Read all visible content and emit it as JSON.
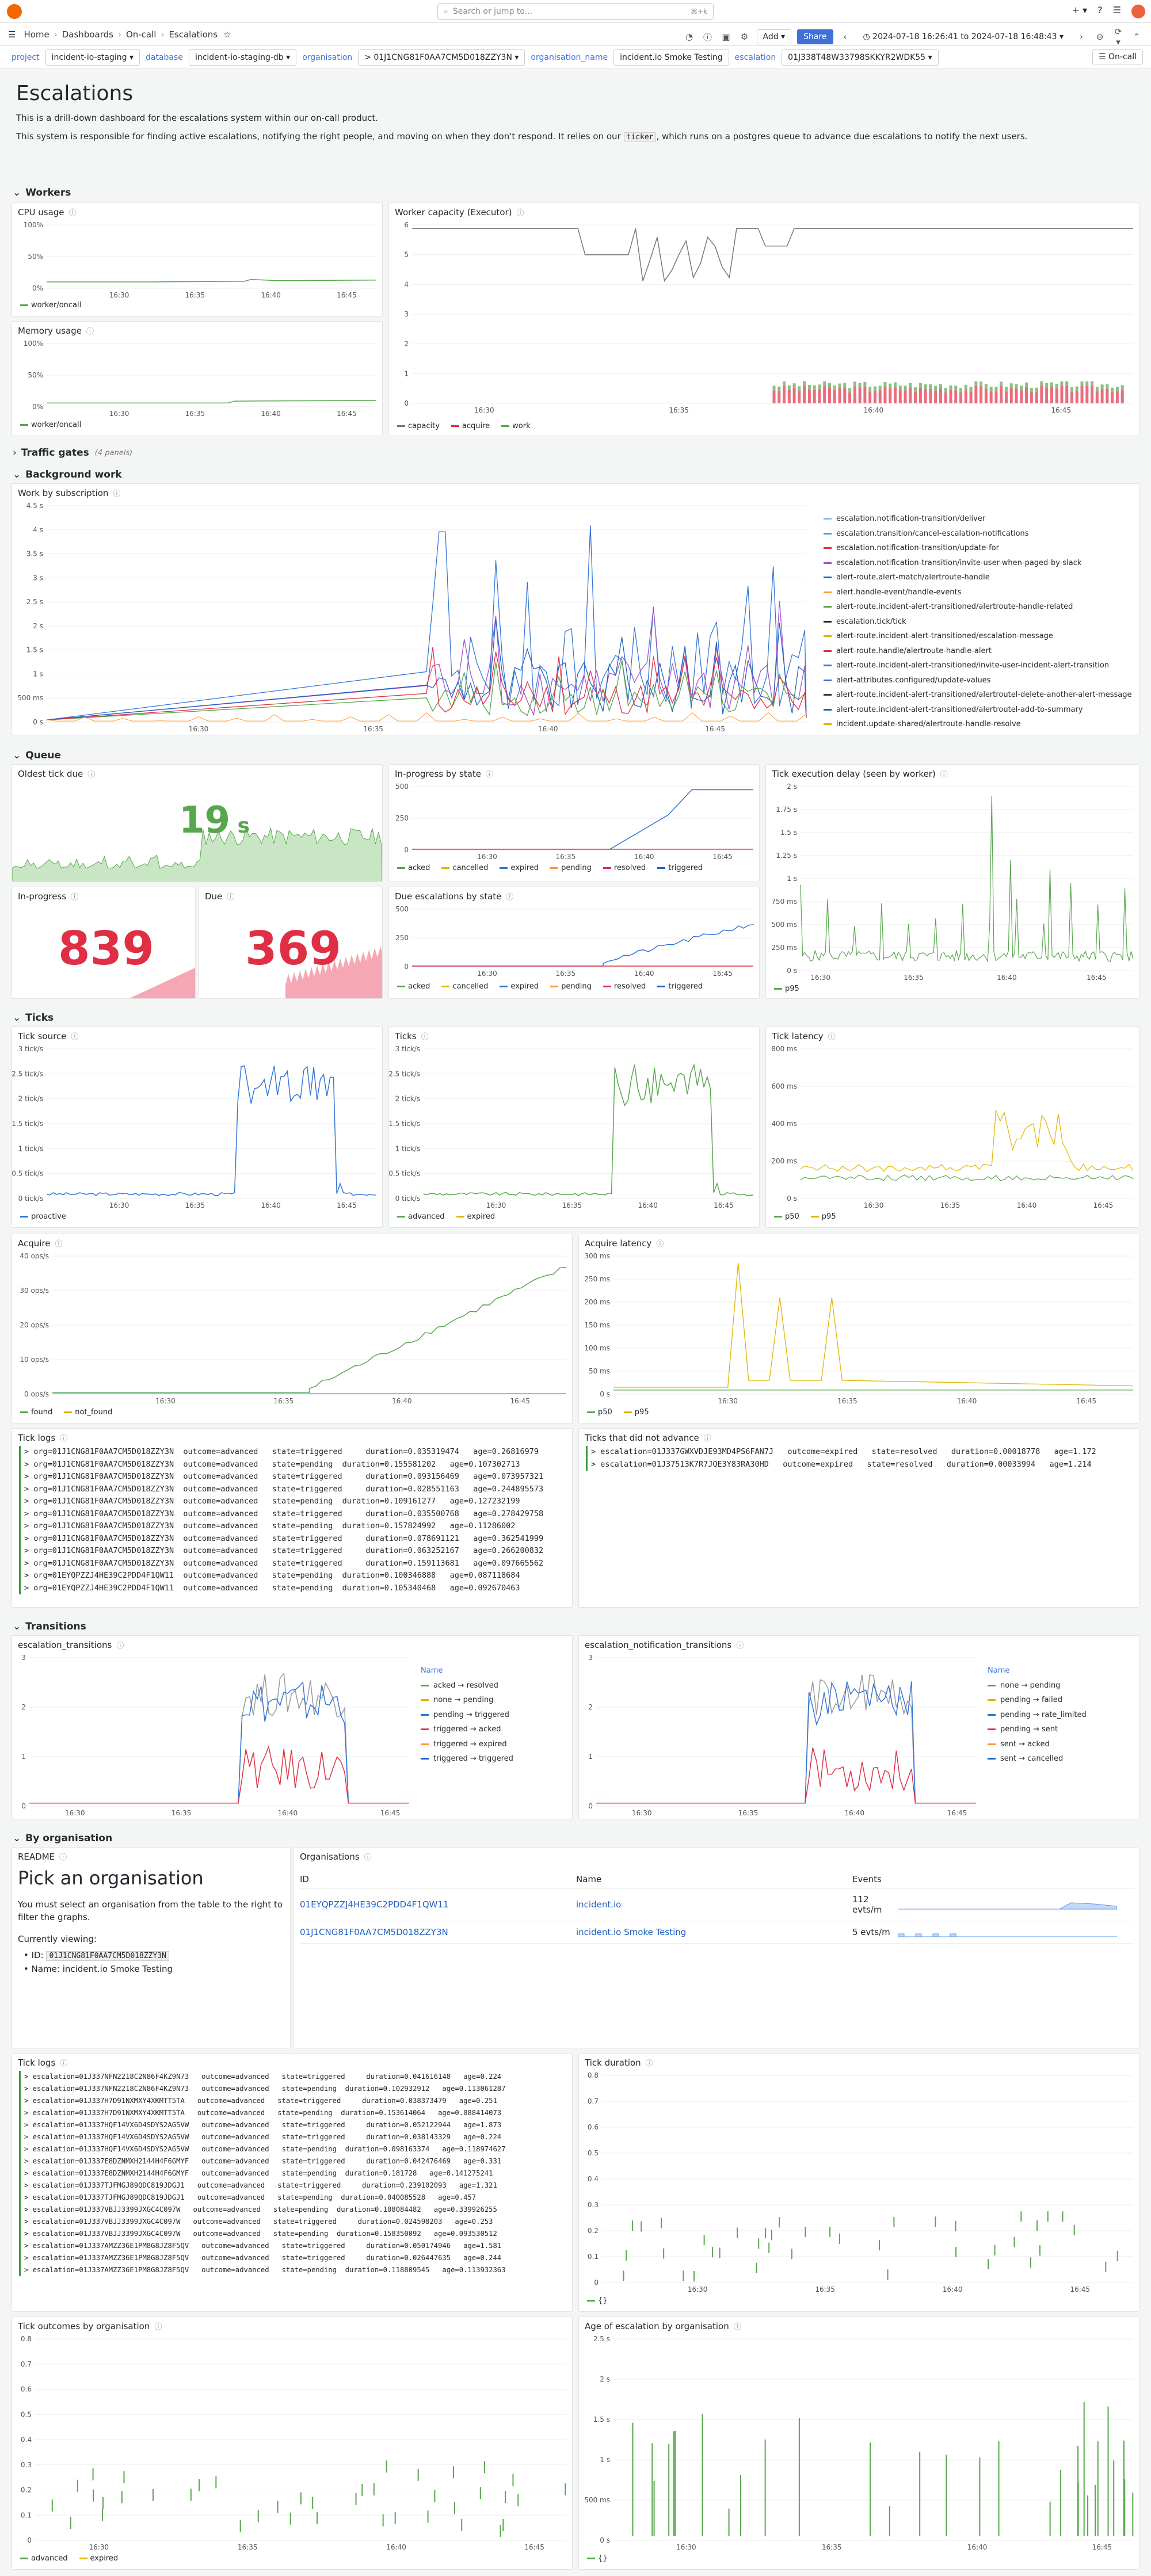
{
  "search": {
    "placeholder": "Search or jump to...",
    "shortcut": "⌘+k"
  },
  "nav": {
    "home": "Home",
    "dashboards": "Dashboards",
    "oncall": "On-call",
    "current": "Escalations",
    "add": "Add",
    "share": "Share",
    "timerange": "2024-07-18 16:26:41 to 2024-07-18 16:48:43"
  },
  "vars": [
    {
      "label": "project",
      "value": "incident-io-staging"
    },
    {
      "label": "database",
      "value": "incident-io-staging-db"
    },
    {
      "label": "organisation",
      "value": "> 01J1CNG81F0AA7CM5D018ZZY3N"
    },
    {
      "label": "organisation_name",
      "value": "incident.io Smoke Testing"
    },
    {
      "label": "escalation",
      "value": "01J338T48W33798SKKYR2WDK55"
    }
  ],
  "oncall_btn": "On-call",
  "title": "Escalations",
  "desc1": "This is a drill-down dashboard for the escalations system within our on-call product.",
  "desc2a": "This system is responsible for finding active escalations, notifying the right people, and moving on when they don't respond. It relies on our",
  "desc2code": "ticker",
  "desc2b": ", which runs on a postgres queue to advance due escalations to notify the next users.",
  "rows": {
    "workers": "Workers",
    "traffic": "Traffic gates",
    "traffic_sub": "(4 panels)",
    "background": "Background work",
    "queue": "Queue",
    "ticks": "Ticks",
    "transitions": "Transitions",
    "byorg": "By organisation"
  },
  "panels": {
    "cpu": "CPU usage",
    "mem": "Memory usage",
    "cap": "Worker capacity (Executor)",
    "wbs": "Work by subscription",
    "oldest": "Oldest tick due",
    "inprog_state": "In-progress by state",
    "delay": "Tick execution delay (seen by worker)",
    "inprog": "In-progress",
    "due": "Due",
    "due_state": "Due escalations by state",
    "tsource": "Tick source",
    "ticks": "Ticks",
    "tlat": "Tick latency",
    "acquire": "Acquire",
    "alat": "Acquire latency",
    "tlogs": "Tick logs",
    "tnot": "Ticks that did not advance",
    "etr": "escalation_transitions",
    "entr": "escalation_notification_transitions",
    "readme": "README",
    "orgs": "Organisations",
    "tlogs2": "Tick logs",
    "tdur": "Tick duration",
    "toutcome": "Tick outcomes by organisation",
    "age": "Age of escalation by organisation"
  },
  "stats": {
    "oldest": "19",
    "oldest_unit": "s",
    "inprog": "839",
    "due": "369"
  },
  "legends": {
    "worker": "worker/oncall",
    "cap": [
      "capacity",
      "acquire",
      "work"
    ],
    "states": [
      "acked",
      "cancelled",
      "expired",
      "pending",
      "resolved",
      "triggered"
    ],
    "p95": "p95",
    "proactive": "proactive",
    "ticks": [
      "advanced",
      "expired"
    ],
    "lat": [
      "p50",
      "p95"
    ],
    "acq": [
      "found",
      "not_found"
    ],
    "etr_name": "Name",
    "etr": [
      "acked → resolved",
      "none → pending",
      "pending → triggered",
      "triggered → acked",
      "triggered → expired",
      "triggered → triggered"
    ],
    "entr": [
      "none → pending",
      "pending → failed",
      "pending → rate_limited",
      "pending → sent",
      "sent → acked",
      "sent → cancelled"
    ],
    "outcomes": [
      "advanced",
      "expired"
    ],
    "age": "{}",
    "dur": "{}"
  },
  "wbs_legend": [
    "escalation.notification-transition/deliver",
    "escalation.transition/cancel-escalation-notifications",
    "escalation.notification-transition/update-for",
    "escalation.notification-transition/invite-user-when-paged-by-slack",
    "alert-route.alert-match/alertroute-handle",
    "alert.handle-event/handle-events",
    "alert-route.incident-alert-transitioned/alertroute-handle-related",
    "escalation.tick/tick",
    "alert-route.incident-alert-transitioned/escalation-message",
    "alert-route.handle/alertroute-handle-alert",
    "alert-route.incident-alert-transitioned/invite-user-incident-alert-transition",
    "alert-attributes.configured/update-values",
    "alert-route.incident-alert-transitioned/alertroutel-delete-another-alert-message",
    "alert-route.incident-alert-transitioned/alertroutel-add-to-summary",
    "incident.update-shared/alertroute-handle-resolve"
  ],
  "axes": {
    "pct": [
      "100%",
      "50%",
      "0%"
    ],
    "times": [
      "16:30",
      "16:35",
      "16:40",
      "16:45"
    ],
    "cap": [
      "6",
      "5",
      "4",
      "3",
      "2",
      "1",
      "0"
    ],
    "wbs": [
      "4.5 s",
      "4 s",
      "3.5 s",
      "3 s",
      "2.5 s",
      "2 s",
      "1.5 s",
      "1 s",
      "500 ms",
      "0 s"
    ],
    "q": [
      "500",
      "250",
      "0"
    ],
    "delay": [
      "2 s",
      "1.75 s",
      "1.5 s",
      "1.25 s",
      "1 s",
      "750 ms",
      "500 ms",
      "250 ms",
      "0 s"
    ],
    "ts": [
      "3 tick/s",
      "2.5 tick/s",
      "2 tick/s",
      "1.5 tick/s",
      "1 tick/s",
      "0.5 tick/s",
      "0 tick/s"
    ],
    "tlat": [
      "800 ms",
      "600 ms",
      "400 ms",
      "200 ms",
      "0 s"
    ],
    "acq": [
      "40 ops/s",
      "30 ops/s",
      "20 ops/s",
      "10 ops/s",
      "0 ops/s"
    ],
    "alat": [
      "300 ms",
      "250 ms",
      "200 ms",
      "150 ms",
      "100 ms",
      "50 ms",
      "0 s"
    ],
    "tr": [
      "3",
      "2",
      "1",
      "0"
    ],
    "dur": [
      "0.8",
      "0.7",
      "0.6",
      "0.5",
      "0.4",
      "0.3",
      "0.2",
      "0.1",
      "0"
    ],
    "age": [
      "2.5 s",
      "2 s",
      "1.5 s",
      "1 s",
      "500 ms",
      "0 s"
    ]
  },
  "tick_logs": [
    "> org=01J1CNG81F0AA7CM5D018ZZY3N  outcome=advanced   state=triggered     duration=0.035319474   age=0.26816979",
    "> org=01J1CNG81F0AA7CM5D018ZZY3N  outcome=advanced   state=pending  duration=0.155581202   age=0.107302713",
    "> org=01J1CNG81F0AA7CM5D018ZZY3N  outcome=advanced   state=triggered     duration=0.093156469   age=0.073957321",
    "> org=01J1CNG81F0AA7CM5D018ZZY3N  outcome=advanced   state=triggered     duration=0.028551163   age=0.244895573",
    "> org=01J1CNG81F0AA7CM5D018ZZY3N  outcome=advanced   state=pending  duration=0.109161277   age=0.127232199",
    "> org=01J1CNG81F0AA7CM5D018ZZY3N  outcome=advanced   state=triggered     duration=0.035500768   age=0.278429758",
    "> org=01J1CNG81F0AA7CM5D018ZZY3N  outcome=advanced   state=pending  duration=0.157824992   age=0.11286002",
    "> org=01J1CNG81F0AA7CM5D018ZZY3N  outcome=advanced   state=triggered     duration=0.078691121   age=0.362541999",
    "> org=01J1CNG81F0AA7CM5D018ZZY3N  outcome=advanced   state=triggered     duration=0.063252167   age=0.266200832",
    "> org=01J1CNG81F0AA7CM5D018ZZY3N  outcome=advanced   state=triggered     duration=0.159113681   age=0.097665562",
    "> org=01EYQPZZJ4HE39C2PDD4F1QW11  outcome=advanced   state=pending  duration=0.100346888   age=0.087118684",
    "> org=01EYQPZZJ4HE39C2PDD4F1QW11  outcome=advanced   state=pending  duration=0.105340468   age=0.092670463"
  ],
  "tick_not": [
    "> escalation=01J337GWXVDJE93MD4PS6FAN7J   outcome=expired   state=resolved   duration=0.00018778   age=1.172",
    "> escalation=01J37513K7R7JQE3Y83RA30HD   outcome=expired   state=resolved   duration=0.00033994   age=1.214"
  ],
  "readme": {
    "heading": "Pick an organisation",
    "body": "You must select an organisation from the table to the right to filter the graphs.",
    "viewing": "Currently viewing:",
    "id_label": "ID:",
    "id": "01J1CNG81F0AA7CM5D018ZZY3N",
    "name_label": "Name:",
    "name": "incident.io Smoke Testing"
  },
  "orgs": {
    "cols": [
      "ID",
      "Name",
      "Events"
    ],
    "rows": [
      {
        "id": "01EYQPZZJ4HE39C2PDD4F1QW11",
        "name": "incident.io",
        "events": "112 evts/m"
      },
      {
        "id": "01J1CNG81F0AA7CM5D018ZZY3N",
        "name": "incident.io Smoke Testing",
        "events": "5 evts/m"
      }
    ]
  },
  "tick_logs2": [
    "> escalation=01J337NFN2218C2N86F4KZ9N73   outcome=advanced   state=triggered     duration=0.041616148   age=0.224",
    "> escalation=01J337NFN2218C2N86F4KZ9N73   outcome=advanced   state=pending  duration=0.102932912   age=0.113061287",
    "> escalation=01J337H7D91NXMXY4XKMTT5TA   outcome=advanced   state=triggered     duration=0.038373479   age=0.251",
    "> escalation=01J337H7D91NXMXY4XKMTT5TA   outcome=advanced   state=pending  duration=0.153614064   age=0.088414073",
    "> escalation=01J337HQF14VX6D4SDYS2AG5VW   outcome=advanced   state=triggered     duration=0.052122944   age=1.873",
    "> escalation=01J337HQF14VX6D4SDYS2AG5VW   outcome=advanced   state=triggered     duration=0.038143329   age=0.224",
    "> escalation=01J337HQF14VX6D4SDYS2AG5VW   outcome=advanced   state=pending  duration=0.098163374   age=0.118974627",
    "> escalation=01J337E8DZNMXH2144H4F6GMYF   outcome=advanced   state=triggered     duration=0.042476469   age=0.331",
    "> escalation=01J337E8DZNMXH2144H4F6GMYF   outcome=advanced   state=pending  duration=0.181728   age=0.141275241",
    "> escalation=01J337TJFMGJ89QDC819JDGJ1   outcome=advanced   state=triggered     duration=0.239102093   age=1.321",
    "> escalation=01J337TJFMGJ89QDC819JDGJ1   outcome=advanced   state=pending  duration=0.040085528   age=0.457",
    "> escalation=01J337VBJJ3399JXGC4C097W   outcome=advanced   state=pending  duration=0.108084482   age=0.339926255",
    "> escalation=01J337VBJJ3399JXGC4C097W   outcome=advanced   state=triggered     duration=0.024598203   age=0.253",
    "> escalation=01J337VBJJ3399JXGC4C097W   outcome=advanced   state=pending  duration=0.158350092   age=0.093530512",
    "> escalation=01J337AMZZ36E1PM8G8JZ8F5QV   outcome=advanced   state=triggered     duration=0.050174946   age=1.581",
    "> escalation=01J337AMZZ36E1PM8G8JZ8F5QV   outcome=advanced   state=triggered     duration=0.026447635   age=0.244",
    "> escalation=01J337AMZZ36E1PM8G8JZ8F5QV   outcome=advanced   state=pending  duration=0.118809545   age=0.113932363"
  ],
  "outcomes_axis": [
    "0.8",
    "0.7",
    "0.6",
    "0.5",
    "0.4",
    "0.3",
    "0.2",
    "0.1",
    "0"
  ],
  "colors": {
    "green": "#56a64b",
    "yellow": "#e0b400",
    "blue": "#3274d9",
    "red": "#e02f44",
    "orange": "#ff9830",
    "purple": "#a352cc",
    "darkblue": "#1f60c4"
  }
}
